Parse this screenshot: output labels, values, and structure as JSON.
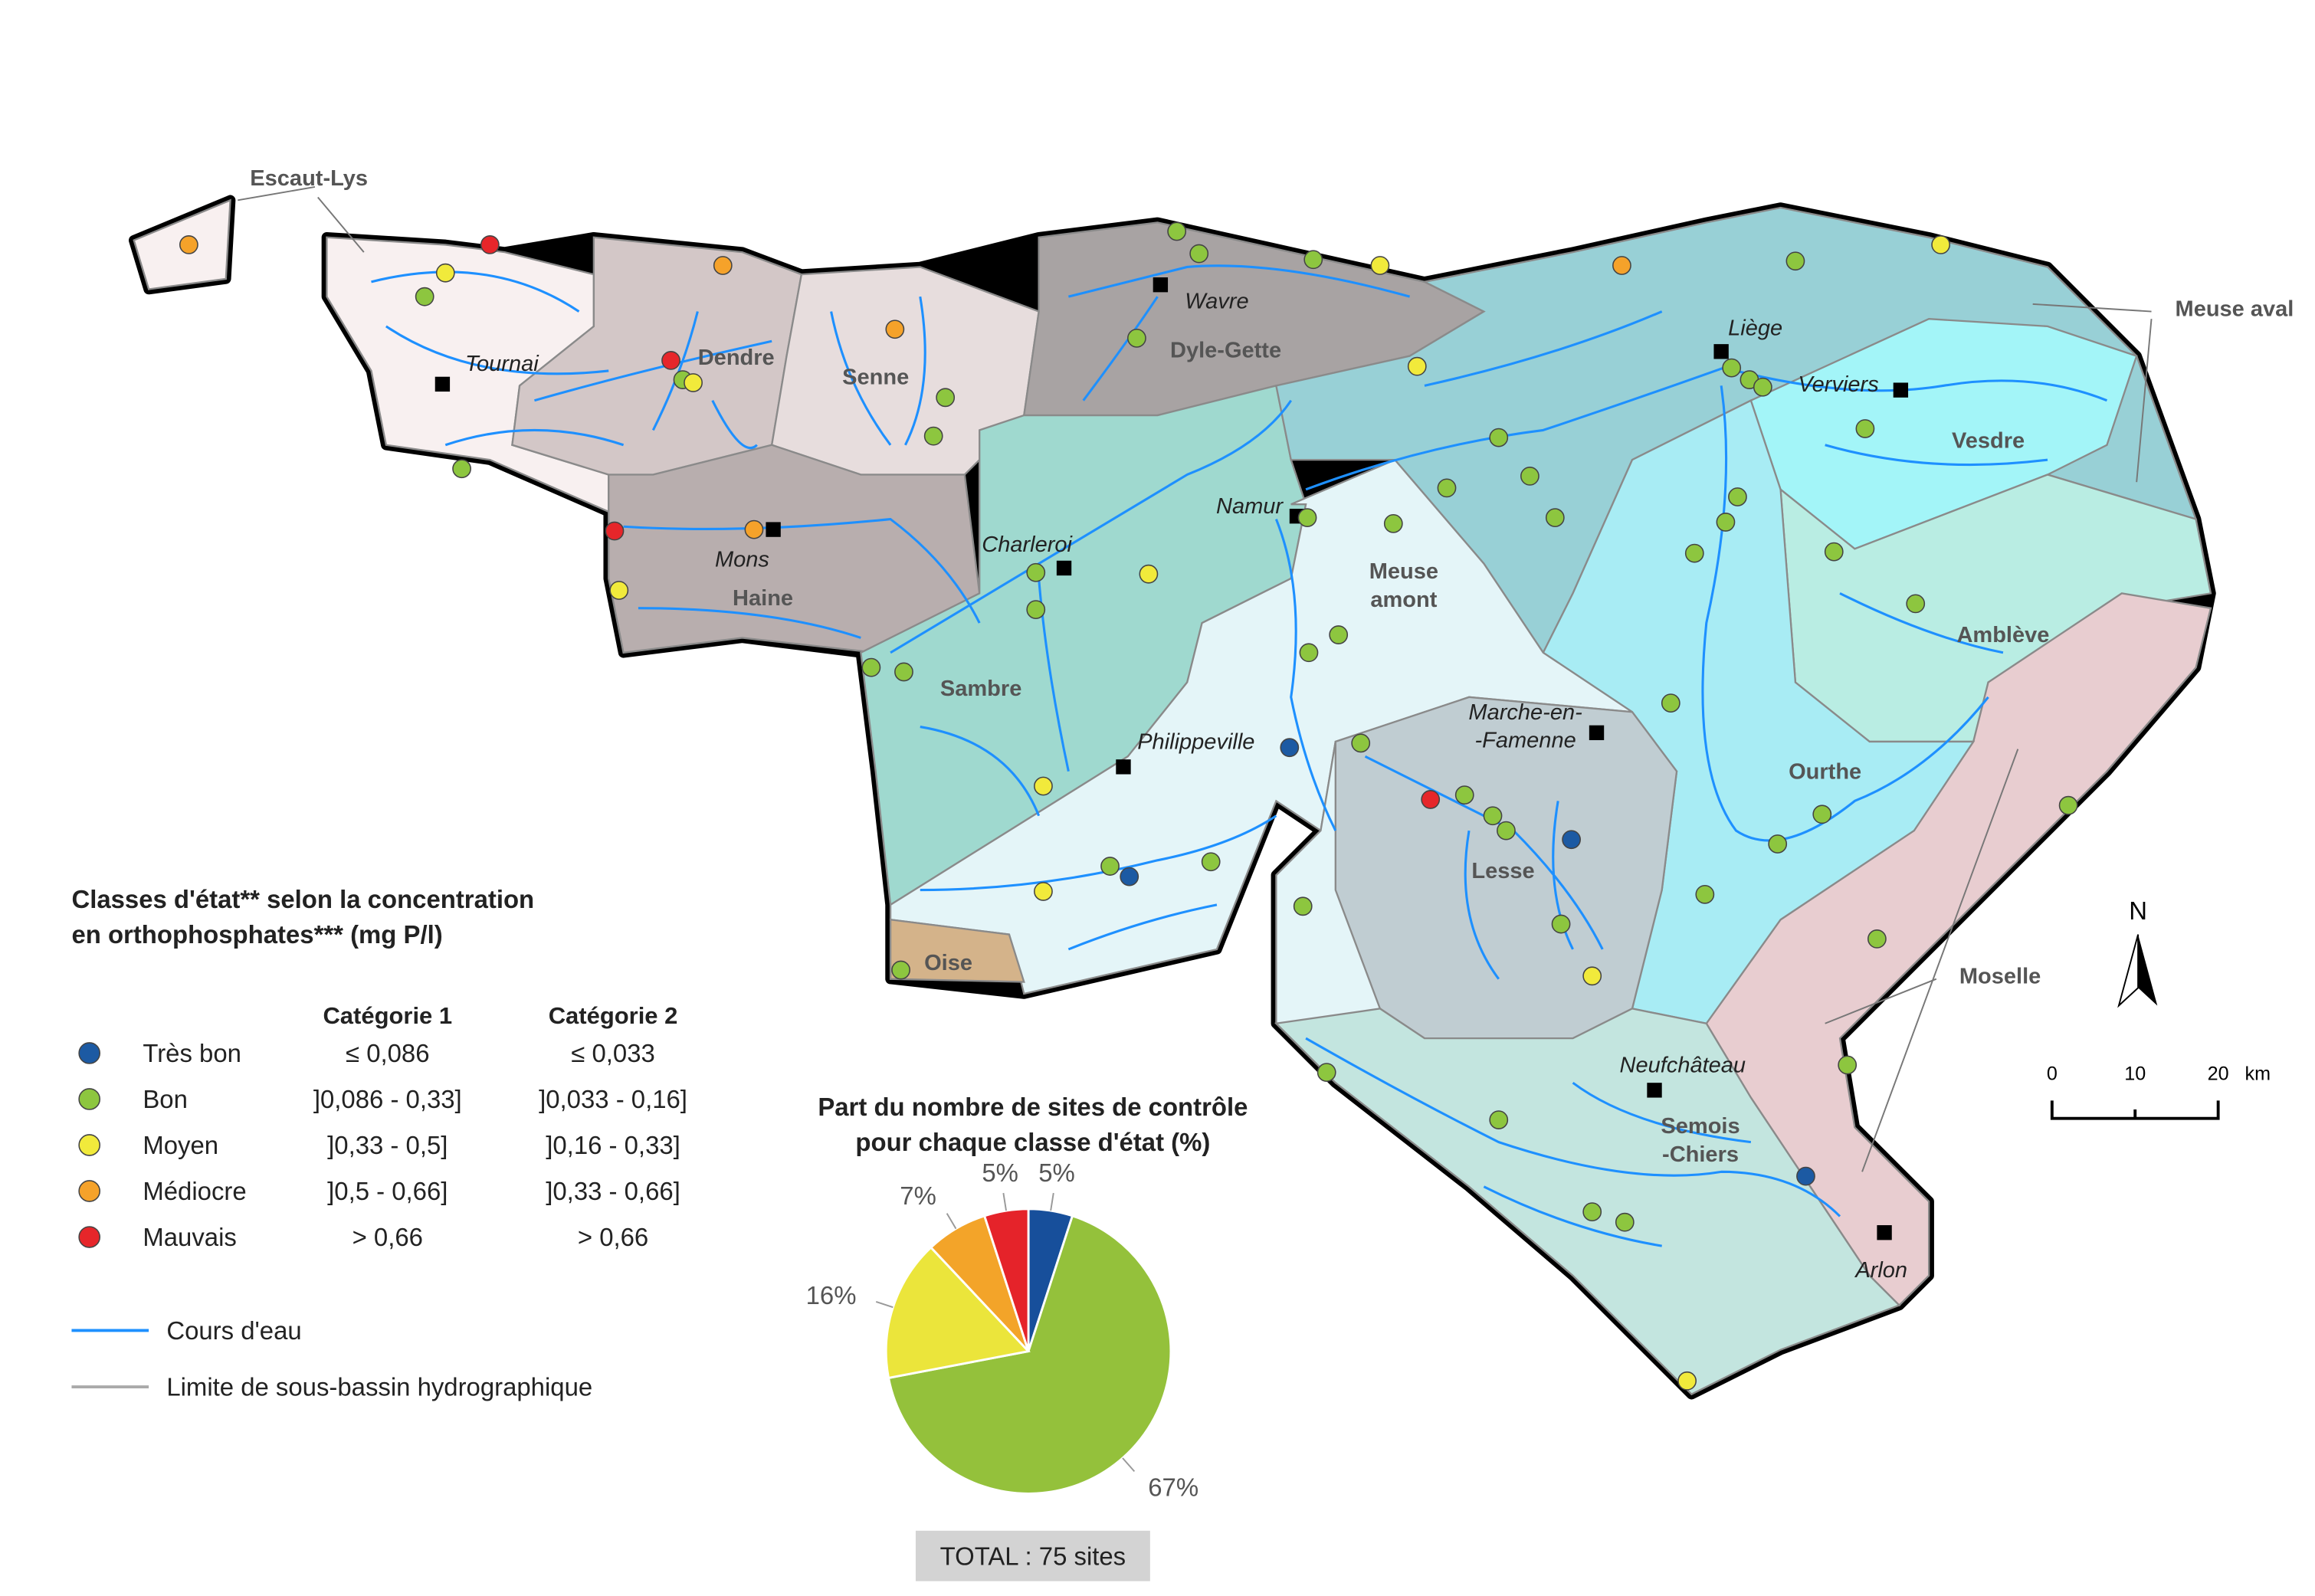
{
  "map": {
    "outer_labels": [
      "Escaut-Lys",
      "Meuse aval",
      "Moselle"
    ],
    "basins": [
      {
        "lines": [
          "Dendre"
        ]
      },
      {
        "lines": [
          "Senne"
        ]
      },
      {
        "lines": [
          "Haine"
        ]
      },
      {
        "lines": [
          "Dyle-Gette"
        ]
      },
      {
        "lines": [
          "Sambre"
        ]
      },
      {
        "lines": [
          "Meuse",
          "amont"
        ]
      },
      {
        "lines": [
          "Lesse"
        ]
      },
      {
        "lines": [
          "Semois",
          "-Chiers"
        ]
      },
      {
        "lines": [
          "Vesdre"
        ]
      },
      {
        "lines": [
          "Amblève"
        ]
      },
      {
        "lines": [
          "Ourthe"
        ]
      },
      {
        "lines": [
          "Oise"
        ]
      }
    ],
    "cities": [
      {
        "lines": [
          "Tournai"
        ]
      },
      {
        "lines": [
          "Mons"
        ]
      },
      {
        "lines": [
          "Charleroi"
        ]
      },
      {
        "lines": [
          "Wavre"
        ]
      },
      {
        "lines": [
          "Namur"
        ]
      },
      {
        "lines": [
          "Philippeville"
        ]
      },
      {
        "lines": [
          "Liège"
        ]
      },
      {
        "lines": [
          "Verviers"
        ]
      },
      {
        "lines": [
          "Marche-en-",
          "-Famenne"
        ]
      },
      {
        "lines": [
          "Neufchâteau"
        ]
      },
      {
        "lines": [
          "Arlon"
        ]
      }
    ],
    "north": "N",
    "scale": [
      "0",
      "10",
      "20",
      "km"
    ]
  },
  "legend": {
    "title_lines": [
      "Classes d'état** selon la concentration",
      "en orthophosphates*** (mg P/l)"
    ],
    "columns": [
      "Catégorie 1",
      "Catégorie 2"
    ],
    "classes": [
      {
        "name": "Très bon",
        "color": "#1c5aa3",
        "cat1": "≤ 0,086",
        "cat2": "≤ 0,033"
      },
      {
        "name": "Bon",
        "color": "#8dc63f",
        "cat1": "]0,086 - 0,33]",
        "cat2": "]0,033 - 0,16]"
      },
      {
        "name": "Moyen",
        "color": "#f1ea3b",
        "cat1": "]0,33 - 0,5]",
        "cat2": "]0,16 - 0,33]"
      },
      {
        "name": "Médiocre",
        "color": "#f5a22a",
        "cat1": "]0,5 - 0,66]",
        "cat2": "]0,33 - 0,66]"
      },
      {
        "name": "Mauvais",
        "color": "#e6262a",
        "cat1": "> 0,66",
        "cat2": "> 0,66"
      }
    ],
    "lines": [
      {
        "name": "Cours d'eau",
        "color": "#1e90ff"
      },
      {
        "name": "Limite de sous-bassin hydrographique",
        "color": "#aaaaaa"
      }
    ]
  },
  "chart_data": {
    "type": "pie",
    "title_lines": [
      "Part du nombre de sites de contrôle",
      "pour chaque classe d'état (%)"
    ],
    "values": [
      5,
      67,
      16,
      7,
      5
    ],
    "value_labels": [
      "5%",
      "67%",
      "16%",
      "7%",
      "5%"
    ],
    "colors": [
      "#174f9b",
      "#94c13b",
      "#ebe53b",
      "#f3a429",
      "#e5232a"
    ],
    "total": "TOTAL : 75 sites"
  }
}
